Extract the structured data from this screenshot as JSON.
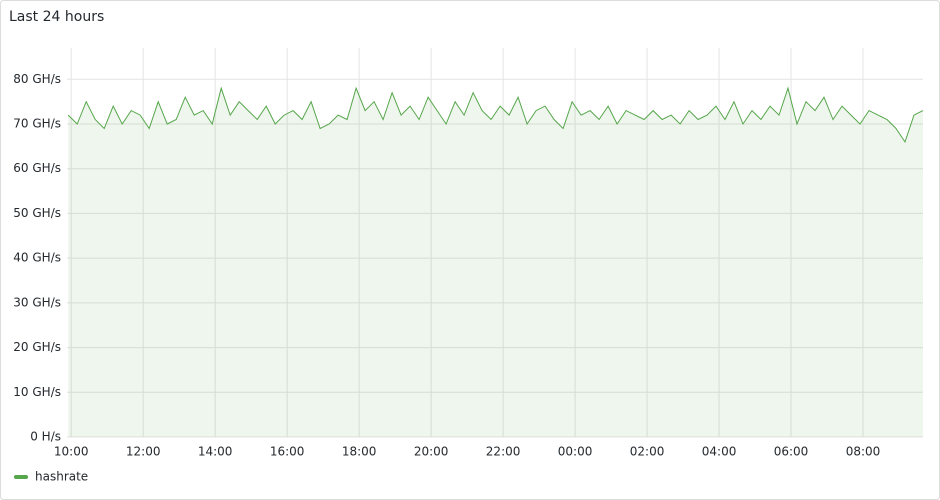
{
  "chart_data": {
    "type": "area",
    "title": "Last 24 hours",
    "x": [
      "09:55",
      "10:10",
      "10:25",
      "10:40",
      "10:55",
      "11:10",
      "11:25",
      "11:40",
      "11:55",
      "12:10",
      "12:25",
      "12:40",
      "12:55",
      "13:10",
      "13:25",
      "13:40",
      "13:55",
      "14:10",
      "14:25",
      "14:40",
      "14:55",
      "15:10",
      "15:25",
      "15:40",
      "15:55",
      "16:10",
      "16:25",
      "16:40",
      "16:55",
      "17:10",
      "17:25",
      "17:40",
      "17:55",
      "18:10",
      "18:25",
      "18:40",
      "18:55",
      "19:10",
      "19:25",
      "19:40",
      "19:55",
      "20:10",
      "20:25",
      "20:40",
      "20:55",
      "21:10",
      "21:25",
      "21:40",
      "21:55",
      "22:10",
      "22:25",
      "22:40",
      "22:55",
      "23:10",
      "23:25",
      "23:40",
      "23:55",
      "00:10",
      "00:25",
      "00:40",
      "00:55",
      "01:10",
      "01:25",
      "01:40",
      "01:55",
      "02:10",
      "02:25",
      "02:40",
      "02:55",
      "03:10",
      "03:25",
      "03:40",
      "03:55",
      "04:10",
      "04:25",
      "04:40",
      "04:55",
      "05:10",
      "05:25",
      "05:40",
      "05:55",
      "06:10",
      "06:25",
      "06:40",
      "06:55",
      "07:10",
      "07:25",
      "07:40",
      "07:55",
      "08:10",
      "08:25",
      "08:40",
      "08:55",
      "09:10",
      "09:25",
      "09:40"
    ],
    "series": [
      {
        "name": "hashrate",
        "color": "#56a64b",
        "values": [
          72,
          70,
          75,
          71,
          69,
          74,
          70,
          73,
          72,
          69,
          75,
          70,
          71,
          76,
          72,
          73,
          70,
          78,
          72,
          75,
          73,
          71,
          74,
          70,
          72,
          73,
          71,
          75,
          69,
          70,
          72,
          71,
          78,
          73,
          75,
          71,
          77,
          72,
          74,
          71,
          76,
          73,
          70,
          75,
          72,
          77,
          73,
          71,
          74,
          72,
          76,
          70,
          73,
          74,
          71,
          69,
          75,
          72,
          73,
          71,
          74,
          70,
          73,
          72,
          71,
          73,
          71,
          72,
          70,
          73,
          71,
          72,
          74,
          71,
          75,
          70,
          73,
          71,
          74,
          72,
          78,
          70,
          75,
          73,
          76,
          71,
          74,
          72,
          70,
          73,
          72,
          71,
          69,
          66,
          72,
          73
        ]
      }
    ],
    "xlim": [
      "09:53",
      "09:40"
    ],
    "xticks": [
      "10:00",
      "12:00",
      "14:00",
      "16:00",
      "18:00",
      "20:00",
      "22:00",
      "00:00",
      "02:00",
      "04:00",
      "06:00",
      "08:00"
    ],
    "ylim": [
      0,
      87
    ],
    "yticks": [
      {
        "value": 0,
        "label": "0 H/s"
      },
      {
        "value": 10,
        "label": "10 GH/s"
      },
      {
        "value": 20,
        "label": "20 GH/s"
      },
      {
        "value": 30,
        "label": "30 GH/s"
      },
      {
        "value": 40,
        "label": "40 GH/s"
      },
      {
        "value": 50,
        "label": "50 GH/s"
      },
      {
        "value": 60,
        "label": "60 GH/s"
      },
      {
        "value": 70,
        "label": "70 GH/s"
      },
      {
        "value": 80,
        "label": "80 GH/s"
      }
    ],
    "grid": true,
    "legend": "bottom-left"
  }
}
